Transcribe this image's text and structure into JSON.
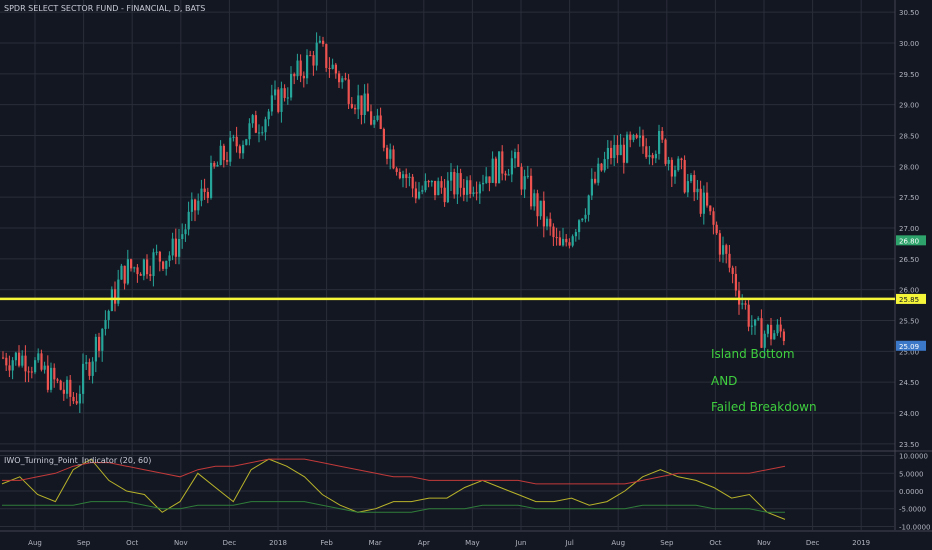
{
  "chart_title": "SPDR SELECT SECTOR FUND - FINANCIAL, D, BATS",
  "indicator_title": "IWO_Turning_Point_Indicator (20, 60)",
  "annotations": [
    "Island Bottom",
    "AND",
    "Failed Breakdown"
  ],
  "chart_data": {
    "type": "candlestick",
    "title": "SPDR SELECT SECTOR FUND - FINANCIAL, D, BATS",
    "price_axis": {
      "ylim": [
        23.4,
        30.6
      ],
      "ticks": [
        "30.50",
        "30.00",
        "29.50",
        "29.00",
        "28.50",
        "28.00",
        "27.50",
        "27.00",
        "26.50",
        "26.00",
        "25.50",
        "25.00",
        "24.50",
        "24.00",
        "23.50"
      ]
    },
    "time_axis": [
      "Aug",
      "Sep",
      "Oct",
      "Nov",
      "Dec",
      "2018",
      "Feb",
      "Mar",
      "Apr",
      "May",
      "Jun",
      "Jul",
      "Aug",
      "Sep",
      "Oct",
      "Nov",
      "Dec",
      "2019"
    ],
    "price_anchors": [
      [
        "Aug",
        24.9
      ],
      [
        "Sep",
        24.2
      ],
      [
        "Oct",
        26.3
      ],
      [
        "Nov",
        26.6
      ],
      [
        "Dec",
        28.1
      ],
      [
        "2018",
        28.9
      ],
      [
        "Feb",
        29.9
      ],
      [
        "Mar",
        28.9
      ],
      [
        "Apr",
        27.6
      ],
      [
        "May",
        27.7
      ],
      [
        "Jun",
        28.1
      ],
      [
        "Jul",
        26.6
      ],
      [
        "Aug",
        28.2
      ],
      [
        "Sep",
        28.4
      ],
      [
        "Oct",
        27.3
      ],
      [
        "Nov",
        25.3
      ]
    ],
    "support_line": {
      "value": 25.85,
      "label": "25.85",
      "color": "#f5f53a"
    },
    "price_labels": [
      {
        "value": 26.8,
        "label": "26.80",
        "color": "#2ea36b"
      },
      {
        "value": 25.09,
        "label": "25.09",
        "color": "#3c78c8"
      }
    ],
    "indicator": {
      "name": "IWO_Turning_Point_Indicator (20, 60)",
      "ylim": [
        -11,
        11
      ],
      "ticks": [
        "10.0000",
        "5.0000",
        "0.0000",
        "-5.0000",
        "-10.0000"
      ],
      "series": [
        {
          "color": "#b8b32a",
          "values": [
            2,
            4,
            -1,
            -3,
            6,
            9,
            3,
            0,
            -1,
            -6,
            -3,
            5,
            1,
            -3,
            6,
            9,
            7,
            4,
            -1,
            -4,
            -6,
            -5,
            -3,
            -3,
            -2,
            -2,
            1,
            3,
            1,
            -1,
            -3,
            -3,
            -2,
            -4,
            -3,
            0,
            4,
            6,
            4,
            3,
            1,
            -2,
            -1,
            -6,
            -8
          ]
        },
        {
          "color": "#c23a3a",
          "values": [
            3,
            3,
            4,
            5,
            7,
            8,
            8,
            7,
            6,
            5,
            4,
            6,
            7,
            7,
            8,
            9,
            9,
            9,
            8,
            7,
            6,
            5,
            4,
            4,
            3,
            3,
            3,
            3,
            3,
            3,
            2,
            2,
            2,
            2,
            2,
            2,
            3,
            4,
            5,
            5,
            5,
            5,
            5,
            6,
            7
          ]
        },
        {
          "color": "#2f7d3a",
          "values": [
            -4,
            -4,
            -4,
            -4,
            -4,
            -3,
            -3,
            -3,
            -4,
            -5,
            -5,
            -4,
            -4,
            -4,
            -3,
            -3,
            -3,
            -3,
            -4,
            -5,
            -6,
            -6,
            -6,
            -6,
            -5,
            -5,
            -5,
            -4,
            -4,
            -4,
            -5,
            -5,
            -5,
            -5,
            -5,
            -5,
            -4,
            -4,
            -4,
            -4,
            -5,
            -5,
            -5,
            -6,
            -6
          ]
        }
      ]
    },
    "colors": {
      "up": "#26a69a",
      "down": "#ef5350",
      "grid": "#2a2e39",
      "text": "#b2b5be"
    }
  }
}
